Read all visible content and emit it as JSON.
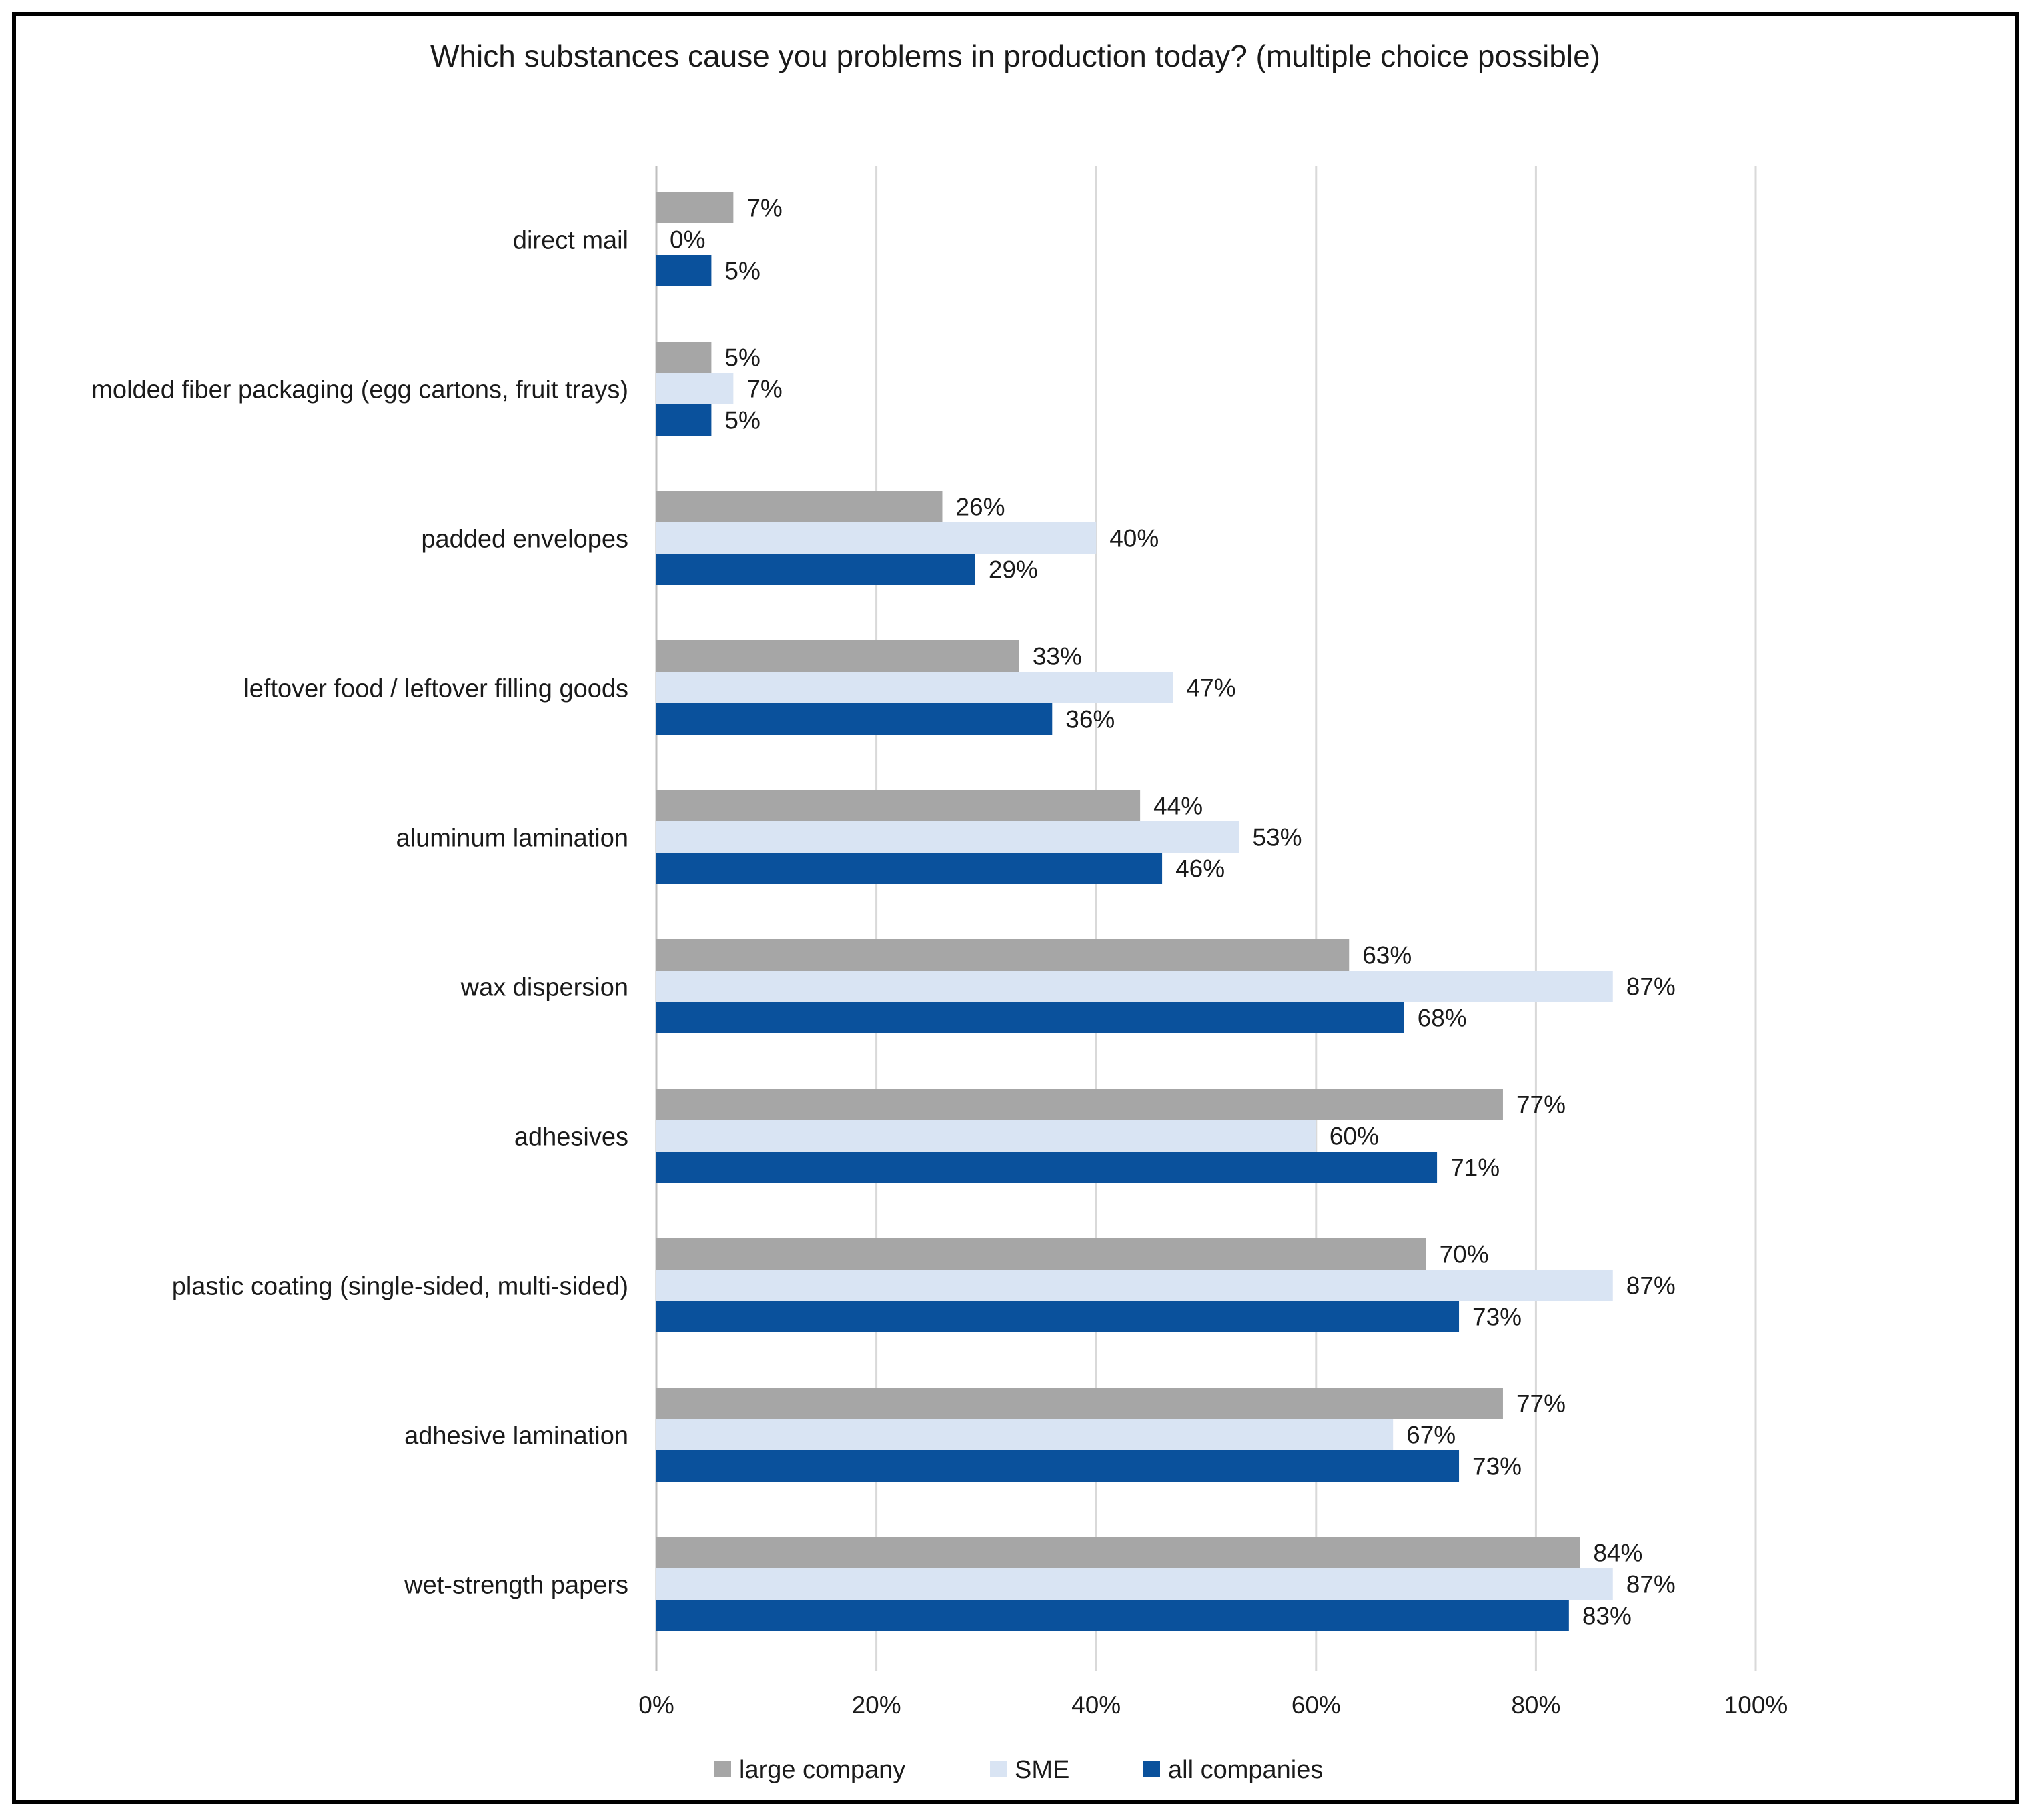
{
  "chart_data": {
    "type": "bar",
    "orientation": "horizontal",
    "title": "Which substances cause you problems in production today? (multiple choice possible)",
    "categories": [
      "direct mail",
      "molded fiber packaging (egg cartons, fruit trays)",
      "padded envelopes",
      "leftover food / leftover filling goods",
      "aluminum lamination",
      "wax dispersion",
      "adhesives",
      "plastic coating (single-sided, multi-sided)",
      "adhesive lamination",
      "wet-strength papers"
    ],
    "series": [
      {
        "name": "large company",
        "color": "#a6a6a6",
        "values": [
          7,
          5,
          26,
          33,
          44,
          63,
          77,
          70,
          77,
          84
        ],
        "labels": [
          "7%",
          "5%",
          "26%",
          "33%",
          "44%",
          "63%",
          "77%",
          "70%",
          "77%",
          "84%"
        ]
      },
      {
        "name": "SME",
        "color": "#d9e4f3",
        "values": [
          0,
          7,
          40,
          47,
          53,
          87,
          60,
          87,
          67,
          87
        ],
        "labels": [
          "0%",
          "7%",
          "40%",
          "47%",
          "53%",
          "87%",
          "60%",
          "87%",
          "67%",
          "87%"
        ]
      },
      {
        "name": "all companies",
        "color": "#0a519c",
        "values": [
          5,
          5,
          29,
          36,
          46,
          68,
          71,
          73,
          73,
          83
        ],
        "labels": [
          "5%",
          "5%",
          "29%",
          "36%",
          "46%",
          "68%",
          "71%",
          "73%",
          "73%",
          "83%"
        ]
      }
    ],
    "xlim": [
      0,
      100
    ],
    "xticks": [
      0,
      20,
      40,
      60,
      80,
      100
    ],
    "xtick_labels": [
      "0%",
      "20%",
      "40%",
      "60%",
      "80%",
      "100%"
    ],
    "grid": true,
    "legend_position": "bottom",
    "xlabel": "",
    "ylabel": ""
  }
}
